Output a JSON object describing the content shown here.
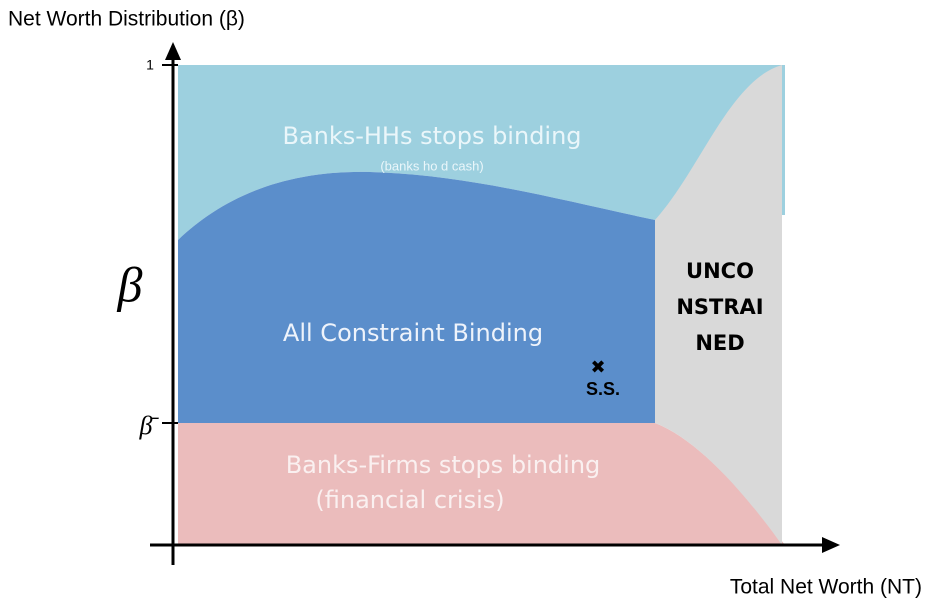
{
  "title": "Net Worth Distribution (β)",
  "y_axis": {
    "top_tick": "1",
    "label": "β",
    "threshold_tick": "β̄"
  },
  "x_axis": {
    "label": "Total Net Worth (NT)"
  },
  "regions": {
    "top": {
      "label": "Banks-HHs stops binding",
      "note": "(banks ho d cash)"
    },
    "middle": {
      "label": "All Constraint Binding",
      "marker": "✖",
      "marker_label": "S.S."
    },
    "bottom": {
      "label": "Banks-Firms stops binding",
      "note": "(financial crisis)"
    },
    "right": {
      "lines": [
        "UNCO",
        "NSTRAI",
        "NED"
      ]
    }
  }
}
